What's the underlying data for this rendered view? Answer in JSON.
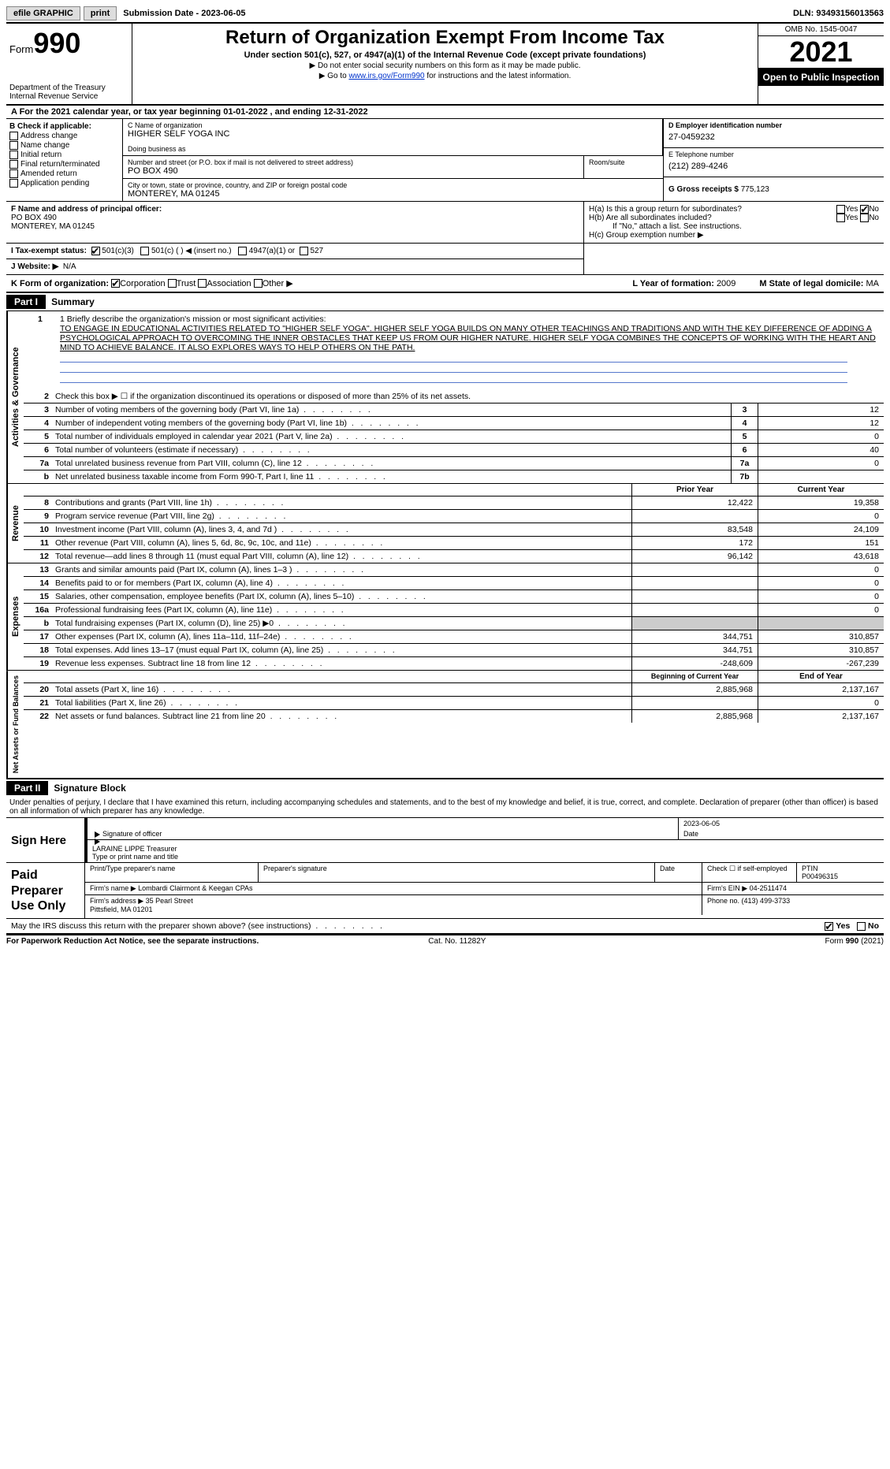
{
  "topbar": {
    "efile": "efile GRAPHIC",
    "print": "print",
    "subdate_label": "Submission Date - ",
    "subdate": "2023-06-05",
    "dln_label": "DLN: ",
    "dln": "93493156013563"
  },
  "header": {
    "form_label": "Form",
    "form_num": "990",
    "dept": "Department of the Treasury\nInternal Revenue Service",
    "title": "Return of Organization Exempt From Income Tax",
    "sub": "Under section 501(c), 527, or 4947(a)(1) of the Internal Revenue Code (except private foundations)",
    "note1": "▶ Do not enter social security numbers on this form as it may be made public.",
    "note2_pre": "▶ Go to ",
    "note2_link": "www.irs.gov/Form990",
    "note2_post": " for instructions and the latest information.",
    "omb": "OMB No. 1545-0047",
    "year": "2021",
    "open": "Open to Public Inspection"
  },
  "rowA": {
    "text_pre": "A For the 2021 calendar year, or tax year beginning ",
    "begin": "01-01-2022",
    "mid": "   , and ending ",
    "end": "12-31-2022"
  },
  "colB": {
    "hdr": "B Check if applicable:",
    "items": [
      "Address change",
      "Name change",
      "Initial return",
      "Final return/terminated",
      "Amended return",
      "Application pending"
    ]
  },
  "colC": {
    "name_lbl": "C Name of organization",
    "name": "HIGHER SELF YOGA INC",
    "dba_lbl": "Doing business as",
    "dba": "",
    "street_lbl": "Number and street (or P.O. box if mail is not delivered to street address)",
    "street": "PO BOX 490",
    "room_lbl": "Room/suite",
    "room": "",
    "city_lbl": "City or town, state or province, country, and ZIP or foreign postal code",
    "city": "MONTEREY, MA  01245"
  },
  "colD": {
    "ein_lbl": "D Employer identification number",
    "ein": "27-0459232",
    "phone_lbl": "E Telephone number",
    "phone": "(212) 289-4246",
    "gross_lbl": "G Gross receipts $ ",
    "gross": "775,123"
  },
  "rowF": {
    "lbl": "F  Name and address of principal officer:",
    "name": "",
    "addr1": "PO BOX 490",
    "addr2": "MONTEREY, MA  01245"
  },
  "rowH": {
    "ha": "H(a)  Is this a group return for subordinates?",
    "hb": "H(b)  Are all subordinates included?",
    "hb_note": "If \"No,\" attach a list. See instructions.",
    "hc": "H(c)  Group exemption number ▶",
    "yes": "Yes",
    "no": "No"
  },
  "rowI": {
    "lbl": "I  Tax-exempt status:",
    "o1": "501(c)(3)",
    "o2": "501(c) (  ) ◀ (insert no.)",
    "o3": "4947(a)(1) or",
    "o4": "527"
  },
  "rowJ": {
    "lbl": "J  Website: ▶",
    "val": "N/A"
  },
  "rowK": {
    "lbl": "K Form of organization:",
    "o1": "Corporation",
    "o2": "Trust",
    "o3": "Association",
    "o4": "Other ▶",
    "L_lbl": "L Year of formation: ",
    "L_val": "2009",
    "M_lbl": "M State of legal domicile: ",
    "M_val": "MA"
  },
  "part1": {
    "hdr": "Part I",
    "title": "Summary",
    "tab_gov": "Activities & Governance",
    "tab_rev": "Revenue",
    "tab_exp": "Expenses",
    "tab_net": "Net Assets or Fund Balances",
    "l1_lbl": "1  Briefly describe the organization's mission or most significant activities:",
    "l1_txt": "TO ENGAGE IN EDUCATIONAL ACTIVITIES RELATED TO \"HIGHER SELF YOGA\". HIGHER SELF YOGA BUILDS ON MANY OTHER TEACHINGS AND TRADITIONS AND WITH THE KEY DIFFERENCE OF ADDING A PSYCHOLOGICAL APPROACH TO OVERCOMING THE INNER OBSTACLES THAT KEEP US FROM OUR HIGHER NATURE. HIGHER SELF YOGA COMBINES THE CONCEPTS OF WORKING WITH THE HEART AND MIND TO ACHIEVE BALANCE. IT ALSO EXPLORES WAYS TO HELP OTHERS ON THE PATH.",
    "l2": "Check this box ▶ ☐  if the organization discontinued its operations or disposed of more than 25% of its net assets.",
    "lines_gov": [
      {
        "n": "3",
        "d": "Number of voting members of the governing body (Part VI, line 1a)",
        "b": "3",
        "v": "12"
      },
      {
        "n": "4",
        "d": "Number of independent voting members of the governing body (Part VI, line 1b)",
        "b": "4",
        "v": "12"
      },
      {
        "n": "5",
        "d": "Total number of individuals employed in calendar year 2021 (Part V, line 2a)",
        "b": "5",
        "v": "0"
      },
      {
        "n": "6",
        "d": "Total number of volunteers (estimate if necessary)",
        "b": "6",
        "v": "40"
      },
      {
        "n": "7a",
        "d": "Total unrelated business revenue from Part VIII, column (C), line 12",
        "b": "7a",
        "v": "0"
      },
      {
        "n": "b",
        "d": "Net unrelated business taxable income from Form 990-T, Part I, line 11",
        "b": "7b",
        "v": ""
      }
    ],
    "col_prior": "Prior Year",
    "col_curr": "Current Year",
    "lines_rev": [
      {
        "n": "8",
        "d": "Contributions and grants (Part VIII, line 1h)",
        "p": "12,422",
        "c": "19,358"
      },
      {
        "n": "9",
        "d": "Program service revenue (Part VIII, line 2g)",
        "p": "",
        "c": "0"
      },
      {
        "n": "10",
        "d": "Investment income (Part VIII, column (A), lines 3, 4, and 7d )",
        "p": "83,548",
        "c": "24,109"
      },
      {
        "n": "11",
        "d": "Other revenue (Part VIII, column (A), lines 5, 6d, 8c, 9c, 10c, and 11e)",
        "p": "172",
        "c": "151"
      },
      {
        "n": "12",
        "d": "Total revenue—add lines 8 through 11 (must equal Part VIII, column (A), line 12)",
        "p": "96,142",
        "c": "43,618"
      }
    ],
    "lines_exp": [
      {
        "n": "13",
        "d": "Grants and similar amounts paid (Part IX, column (A), lines 1–3 )",
        "p": "",
        "c": "0"
      },
      {
        "n": "14",
        "d": "Benefits paid to or for members (Part IX, column (A), line 4)",
        "p": "",
        "c": "0"
      },
      {
        "n": "15",
        "d": "Salaries, other compensation, employee benefits (Part IX, column (A), lines 5–10)",
        "p": "",
        "c": "0"
      },
      {
        "n": "16a",
        "d": "Professional fundraising fees (Part IX, column (A), line 11e)",
        "p": "",
        "c": "0"
      },
      {
        "n": "b",
        "d": "Total fundraising expenses (Part IX, column (D), line 25) ▶0",
        "p": "SHADE",
        "c": "SHADE"
      },
      {
        "n": "17",
        "d": "Other expenses (Part IX, column (A), lines 11a–11d, 11f–24e)",
        "p": "344,751",
        "c": "310,857"
      },
      {
        "n": "18",
        "d": "Total expenses. Add lines 13–17 (must equal Part IX, column (A), line 25)",
        "p": "344,751",
        "c": "310,857"
      },
      {
        "n": "19",
        "d": "Revenue less expenses. Subtract line 18 from line 12",
        "p": "-248,609",
        "c": "-267,239"
      }
    ],
    "col_begin": "Beginning of Current Year",
    "col_end": "End of Year",
    "lines_net": [
      {
        "n": "20",
        "d": "Total assets (Part X, line 16)",
        "p": "2,885,968",
        "c": "2,137,167"
      },
      {
        "n": "21",
        "d": "Total liabilities (Part X, line 26)",
        "p": "",
        "c": "0"
      },
      {
        "n": "22",
        "d": "Net assets or fund balances. Subtract line 21 from line 20",
        "p": "2,885,968",
        "c": "2,137,167"
      }
    ]
  },
  "part2": {
    "hdr": "Part II",
    "title": "Signature Block",
    "penalty": "Under penalties of perjury, I declare that I have examined this return, including accompanying schedules and statements, and to the best of my knowledge and belief, it is true, correct, and complete. Declaration of preparer (other than officer) is based on all information of which preparer has any knowledge.",
    "sign_here": "Sign Here",
    "sig_officer": "Signature of officer",
    "sig_date": "Date",
    "sig_date_val": "2023-06-05",
    "officer_name": "LARAINE LIPPE  Treasurer",
    "officer_lbl": "Type or print name and title",
    "paid": "Paid Preparer Use Only",
    "prep_name_lbl": "Print/Type preparer's name",
    "prep_name": "",
    "prep_sig_lbl": "Preparer's signature",
    "prep_date_lbl": "Date",
    "prep_self": "Check ☐ if self-employed",
    "ptin_lbl": "PTIN",
    "ptin": "P00496315",
    "firm_name_lbl": "Firm's name   ▶ ",
    "firm_name": "Lombardi Clairmont & Keegan CPAs",
    "firm_ein_lbl": "Firm's EIN ▶ ",
    "firm_ein": "04-2511474",
    "firm_addr_lbl": "Firm's address ▶ ",
    "firm_addr": "35 Pearl Street\n                      Pittsfield, MA  01201",
    "firm_phone_lbl": "Phone no. ",
    "firm_phone": "(413) 499-3733",
    "discuss": "May the IRS discuss this return with the preparer shown above? (see instructions)",
    "yes": "Yes",
    "no": "No"
  },
  "footer": {
    "left": "For Paperwork Reduction Act Notice, see the separate instructions.",
    "mid": "Cat. No. 11282Y",
    "right": "Form 990 (2021)"
  }
}
